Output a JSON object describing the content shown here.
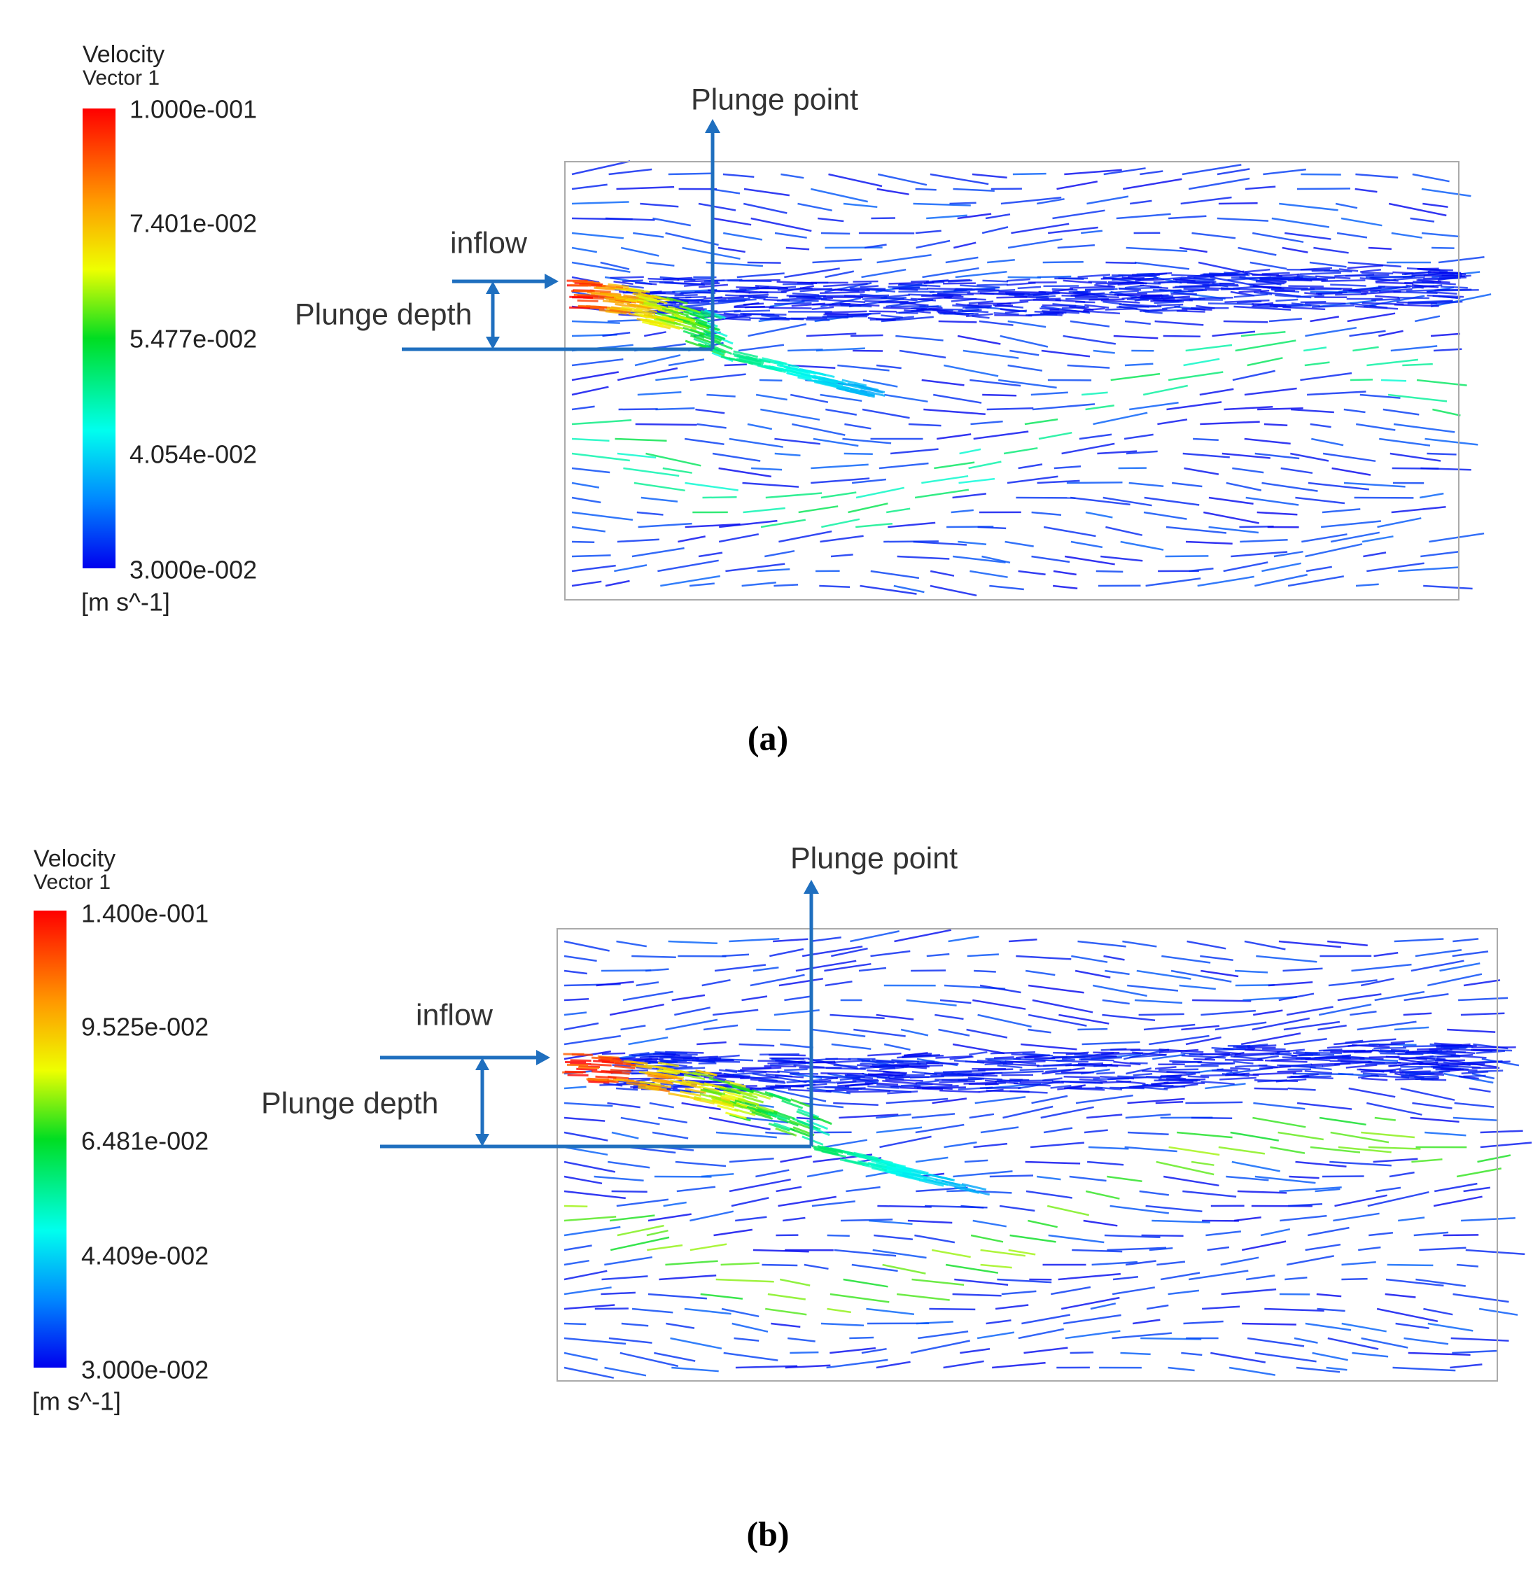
{
  "panels": [
    {
      "legend": {
        "title": "Velocity",
        "subtitle": "Vector 1",
        "ticks": [
          "1.000e-001",
          "7.401e-002",
          "5.477e-002",
          "4.054e-002",
          "3.000e-002"
        ],
        "unit": "[m s^-1]"
      },
      "annotations": {
        "plunge_point": "Plunge point",
        "inflow": "inflow",
        "plunge_depth": "Plunge depth"
      },
      "caption": "(a)"
    },
    {
      "legend": {
        "title": "Velocity",
        "subtitle": "Vector 1",
        "ticks": [
          "1.400e-001",
          "9.525e-002",
          "6.481e-002",
          "4.409e-002",
          "3.000e-002"
        ],
        "unit": "[m s^-1]"
      },
      "annotations": {
        "plunge_point": "Plunge point",
        "inflow": "inflow",
        "plunge_depth": "Plunge depth"
      },
      "caption": "(b)"
    }
  ]
}
